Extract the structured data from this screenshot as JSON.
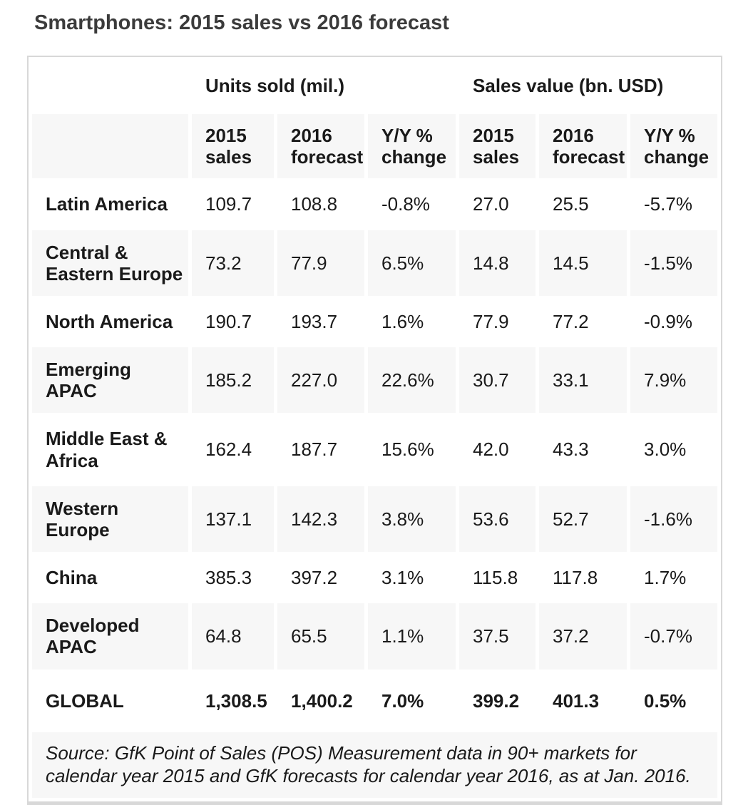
{
  "title": "Smartphones: 2015 sales vs 2016 forecast",
  "table": {
    "group_headers": [
      {
        "label": "Units sold (mil.)"
      },
      {
        "label": "Sales value (bn. USD)"
      }
    ],
    "column_headers": [
      "2015 sales",
      "2016 forecast",
      "Y/Y % change",
      "2015 sales",
      "2016 forecast",
      "Y/Y % change"
    ],
    "rows": [
      {
        "region": "Latin America",
        "values": [
          "109.7",
          "108.8",
          "-0.8%",
          "27.0",
          "25.5",
          "-5.7%"
        ]
      },
      {
        "region": "Central & Eastern Europe",
        "values": [
          "73.2",
          "77.9",
          "6.5%",
          "14.8",
          "14.5",
          "-1.5%"
        ]
      },
      {
        "region": "North America",
        "values": [
          "190.7",
          "193.7",
          "1.6%",
          "77.9",
          "77.2",
          "-0.9%"
        ]
      },
      {
        "region": "Emerging APAC",
        "values": [
          "185.2",
          "227.0",
          "22.6%",
          "30.7",
          "33.1",
          "7.9%"
        ]
      },
      {
        "region": "Middle East & Africa",
        "values": [
          "162.4",
          "187.7",
          "15.6%",
          "42.0",
          "43.3",
          "3.0%"
        ]
      },
      {
        "region": "Western Europe",
        "values": [
          "137.1",
          "142.3",
          "3.8%",
          "53.6",
          "52.7",
          "-1.6%"
        ]
      },
      {
        "region": "China",
        "values": [
          "385.3",
          "397.2",
          "3.1%",
          "115.8",
          "117.8",
          "1.7%"
        ]
      },
      {
        "region": "Developed APAC",
        "values": [
          "64.8",
          "65.5",
          "1.1%",
          "37.5",
          "37.2",
          "-0.7%"
        ]
      }
    ],
    "total": {
      "region": "GLOBAL",
      "values": [
        "1,308.5",
        "1,400.2",
        "7.0%",
        "399.2",
        "401.3",
        "0.5%"
      ]
    },
    "source": "Source: GfK Point of Sales (POS) Measurement data in 90+ markets for calendar year 2015 and GfK forecasts for calendar year 2016, as at Jan. 2016."
  },
  "colors": {
    "zebra_row_bg": "#f7f7f7",
    "card_border": "#d8d8d8",
    "title_text": "#3b3b3b",
    "body_text": "#1a1a1a"
  },
  "chart_data": {
    "type": "table",
    "title": "Smartphones: 2015 sales vs 2016 forecast",
    "column_groups": [
      "Units sold (mil.)",
      "Sales value (bn. USD)"
    ],
    "columns": [
      "Region",
      "Units sold 2015 sales (mil.)",
      "Units sold 2016 forecast (mil.)",
      "Units sold Y/Y % change",
      "Sales value 2015 sales (bn. USD)",
      "Sales value 2016 forecast (bn. USD)",
      "Sales value Y/Y % change"
    ],
    "rows": [
      [
        "Latin America",
        109.7,
        108.8,
        -0.8,
        27.0,
        25.5,
        -5.7
      ],
      [
        "Central & Eastern Europe",
        73.2,
        77.9,
        6.5,
        14.8,
        14.5,
        -1.5
      ],
      [
        "North America",
        190.7,
        193.7,
        1.6,
        77.9,
        77.2,
        -0.9
      ],
      [
        "Emerging APAC",
        185.2,
        227.0,
        22.6,
        30.7,
        33.1,
        7.9
      ],
      [
        "Middle East & Africa",
        162.4,
        187.7,
        15.6,
        42.0,
        43.3,
        3.0
      ],
      [
        "Western Europe",
        137.1,
        142.3,
        3.8,
        53.6,
        52.7,
        -1.6
      ],
      [
        "China",
        385.3,
        397.2,
        3.1,
        115.8,
        117.8,
        1.7
      ],
      [
        "Developed APAC",
        64.8,
        65.5,
        1.1,
        37.5,
        37.2,
        -0.7
      ],
      [
        "GLOBAL",
        1308.5,
        1400.2,
        7.0,
        399.2,
        401.3,
        0.5
      ]
    ],
    "source_note": "Source: GfK Point of Sales (POS) Measurement data in 90+ markets for calendar year 2015 and GfK forecasts for calendar year 2016, as at Jan. 2016."
  }
}
